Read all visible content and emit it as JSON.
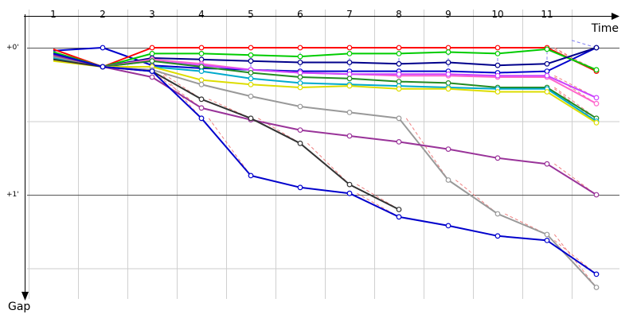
{
  "chart_data": {
    "type": "line",
    "title": "",
    "xlabel": "Time",
    "ylabel": "Gap",
    "x_categories": [
      "1",
      "2",
      "3",
      "4",
      "5",
      "6",
      "7",
      "8",
      "9",
      "10",
      "11"
    ],
    "y_tick_labels": [
      "+0'",
      "+1'"
    ],
    "y_ticks_minutes": [
      0,
      1
    ],
    "ylim_minutes": [
      -0.05,
      1.7
    ],
    "grid": true,
    "legend": "none",
    "pit_line_colors": {
      "red": "#f08080",
      "blue": "#8080f0"
    },
    "series": [
      {
        "color": "#0000cc",
        "points": [
          [
            0.5,
            0.02
          ],
          [
            1.5,
            0.0
          ],
          [
            2.5,
            0.12
          ],
          [
            3.5,
            0.14
          ],
          [
            4.5,
            0.15
          ],
          [
            5.5,
            0.16
          ],
          [
            6.5,
            0.16
          ],
          [
            7.5,
            0.16
          ],
          [
            8.5,
            0.16
          ],
          [
            9.5,
            0.17
          ],
          [
            10.5,
            0.16
          ],
          [
            11.5,
            0.0
          ]
        ],
        "pit_drops": [
          [
            11.0,
            -0.05,
            11.5,
            0.0
          ]
        ]
      },
      {
        "color": "#ff0000",
        "points": [
          [
            0.5,
            0.01
          ],
          [
            1.5,
            0.13
          ],
          [
            2.5,
            0.0
          ],
          [
            3.5,
            0.0
          ],
          [
            4.5,
            0.0
          ],
          [
            5.5,
            0.0
          ],
          [
            6.5,
            0.0
          ],
          [
            7.5,
            0.0
          ],
          [
            8.5,
            0.0
          ],
          [
            9.5,
            0.0
          ],
          [
            10.5,
            0.0
          ],
          [
            11.5,
            0.16
          ]
        ],
        "pit_drops": [
          [
            2.5,
            0.12,
            2.5,
            0.0
          ],
          [
            3.5,
            0.12,
            3.5,
            0.0
          ],
          [
            4.5,
            0.13,
            4.5,
            0.0
          ],
          [
            5.5,
            0.13,
            5.5,
            0.0
          ],
          [
            6.5,
            0.13,
            6.5,
            0.0
          ],
          [
            7.5,
            0.13,
            7.5,
            0.0
          ],
          [
            8.5,
            0.13,
            8.5,
            0.0
          ],
          [
            9.5,
            0.13,
            9.5,
            0.0
          ],
          [
            10.5,
            0.12,
            10.5,
            0.0
          ]
        ]
      },
      {
        "color": "#00cc00",
        "points": [
          [
            0.5,
            0.03
          ],
          [
            1.5,
            0.13
          ],
          [
            2.5,
            0.04
          ],
          [
            3.5,
            0.04
          ],
          [
            4.5,
            0.05
          ],
          [
            5.5,
            0.06
          ],
          [
            6.5,
            0.04
          ],
          [
            7.5,
            0.04
          ],
          [
            8.5,
            0.03
          ],
          [
            9.5,
            0.04
          ],
          [
            10.5,
            0.01
          ],
          [
            11.5,
            0.15
          ]
        ]
      },
      {
        "color": "#00008b",
        "points": [
          [
            0.5,
            0.06
          ],
          [
            1.5,
            0.13
          ],
          [
            2.5,
            0.07
          ],
          [
            3.5,
            0.08
          ],
          [
            4.5,
            0.09
          ],
          [
            5.5,
            0.1
          ],
          [
            6.5,
            0.1
          ],
          [
            7.5,
            0.11
          ],
          [
            8.5,
            0.1
          ],
          [
            9.5,
            0.12
          ],
          [
            10.5,
            0.11
          ],
          [
            11.5,
            0.0
          ]
        ]
      },
      {
        "color": "#ff66cc",
        "points": [
          [
            0.5,
            0.04
          ],
          [
            1.5,
            0.13
          ],
          [
            2.5,
            0.08
          ],
          [
            3.5,
            0.11
          ],
          [
            4.5,
            0.15
          ],
          [
            5.5,
            0.17
          ],
          [
            6.5,
            0.18
          ],
          [
            7.5,
            0.19
          ],
          [
            8.5,
            0.19
          ],
          [
            9.5,
            0.2
          ],
          [
            10.5,
            0.2
          ],
          [
            11.5,
            0.38
          ]
        ]
      },
      {
        "color": "#cc44ff",
        "points": [
          [
            0.5,
            0.05
          ],
          [
            1.5,
            0.13
          ],
          [
            2.5,
            0.09
          ],
          [
            3.5,
            0.12
          ],
          [
            4.5,
            0.15
          ],
          [
            5.5,
            0.17
          ],
          [
            6.5,
            0.18
          ],
          [
            7.5,
            0.18
          ],
          [
            8.5,
            0.18
          ],
          [
            9.5,
            0.19
          ],
          [
            10.5,
            0.19
          ],
          [
            11.5,
            0.34
          ]
        ]
      },
      {
        "color": "#228b22",
        "points": [
          [
            0.5,
            0.06
          ],
          [
            1.5,
            0.13
          ],
          [
            2.5,
            0.09
          ],
          [
            3.5,
            0.13
          ],
          [
            4.5,
            0.17
          ],
          [
            5.5,
            0.2
          ],
          [
            6.5,
            0.21
          ],
          [
            7.5,
            0.23
          ],
          [
            8.5,
            0.24
          ],
          [
            9.5,
            0.27
          ],
          [
            10.5,
            0.27
          ],
          [
            11.5,
            0.48
          ]
        ]
      },
      {
        "color": "#00aacc",
        "points": [
          [
            0.5,
            0.07
          ],
          [
            1.5,
            0.13
          ],
          [
            2.5,
            0.13
          ],
          [
            3.5,
            0.16
          ],
          [
            4.5,
            0.21
          ],
          [
            5.5,
            0.24
          ],
          [
            6.5,
            0.25
          ],
          [
            7.5,
            0.26
          ],
          [
            8.5,
            0.27
          ],
          [
            9.5,
            0.28
          ],
          [
            10.5,
            0.28
          ],
          [
            11.5,
            0.5
          ]
        ]
      },
      {
        "color": "#dddd00",
        "points": [
          [
            0.5,
            0.09
          ],
          [
            1.5,
            0.13
          ],
          [
            2.5,
            0.13
          ],
          [
            3.5,
            0.22
          ],
          [
            4.5,
            0.25
          ],
          [
            5.5,
            0.27
          ],
          [
            6.5,
            0.26
          ],
          [
            7.5,
            0.28
          ],
          [
            8.5,
            0.28
          ],
          [
            9.5,
            0.3
          ],
          [
            10.5,
            0.3
          ],
          [
            11.5,
            0.51
          ]
        ]
      },
      {
        "color": "#999999",
        "points": [
          [
            0.5,
            0.06
          ],
          [
            1.5,
            0.13
          ],
          [
            2.5,
            0.15
          ],
          [
            3.5,
            0.25
          ],
          [
            4.5,
            0.33
          ],
          [
            5.5,
            0.4
          ],
          [
            6.5,
            0.44
          ],
          [
            7.5,
            0.48
          ],
          [
            8.5,
            0.9
          ],
          [
            9.5,
            1.13
          ],
          [
            10.5,
            1.27
          ],
          [
            11.5,
            1.63
          ]
        ]
      },
      {
        "color": "#993399",
        "points": [
          [
            0.5,
            0.05
          ],
          [
            1.5,
            0.13
          ],
          [
            2.5,
            0.2
          ],
          [
            3.5,
            0.41
          ],
          [
            4.5,
            0.49
          ],
          [
            5.5,
            0.56
          ],
          [
            6.5,
            0.6
          ],
          [
            7.5,
            0.64
          ],
          [
            8.5,
            0.69
          ],
          [
            9.5,
            0.75
          ],
          [
            10.5,
            0.79
          ],
          [
            11.5,
            1.0
          ]
        ]
      },
      {
        "color": "#333333",
        "points": [
          [
            0.5,
            0.08
          ],
          [
            1.5,
            0.13
          ],
          [
            2.5,
            0.16
          ],
          [
            3.5,
            0.35
          ],
          [
            4.5,
            0.48
          ],
          [
            5.5,
            0.65
          ],
          [
            6.5,
            0.93
          ],
          [
            7.5,
            1.1
          ]
        ]
      },
      {
        "color": "#0000cc",
        "points": [
          [
            0.5,
            0.04
          ],
          [
            1.5,
            0.13
          ],
          [
            2.5,
            0.16
          ],
          [
            3.5,
            0.48
          ],
          [
            4.5,
            0.87
          ],
          [
            5.5,
            0.95
          ],
          [
            6.5,
            0.99
          ],
          [
            7.5,
            1.15
          ],
          [
            8.5,
            1.21
          ],
          [
            9.5,
            1.28
          ],
          [
            10.5,
            1.31
          ],
          [
            11.5,
            1.54
          ]
        ]
      }
    ]
  }
}
